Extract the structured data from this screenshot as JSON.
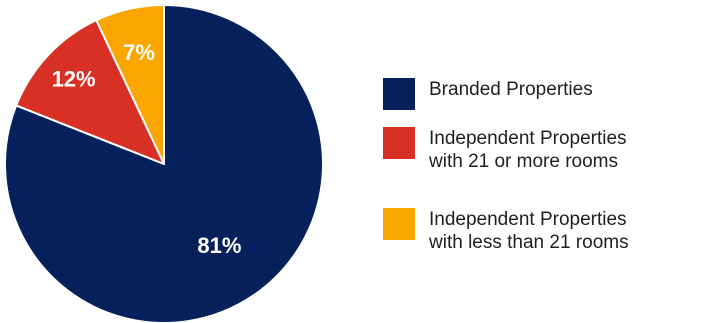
{
  "chart_data": {
    "type": "pie",
    "title": "",
    "slices": [
      {
        "label_lines": [
          "Branded Properties"
        ],
        "value": 81,
        "display": "81%",
        "color": "#05205a"
      },
      {
        "label_lines": [
          "Independent Properties",
          "with 21 or more rooms"
        ],
        "value": 12,
        "display": "12%",
        "color": "#d93026"
      },
      {
        "label_lines": [
          "Independent Properties",
          "with less than 21 rooms"
        ],
        "value": 7,
        "display": "7%",
        "color": "#fba600"
      }
    ],
    "legend_position": "right"
  }
}
